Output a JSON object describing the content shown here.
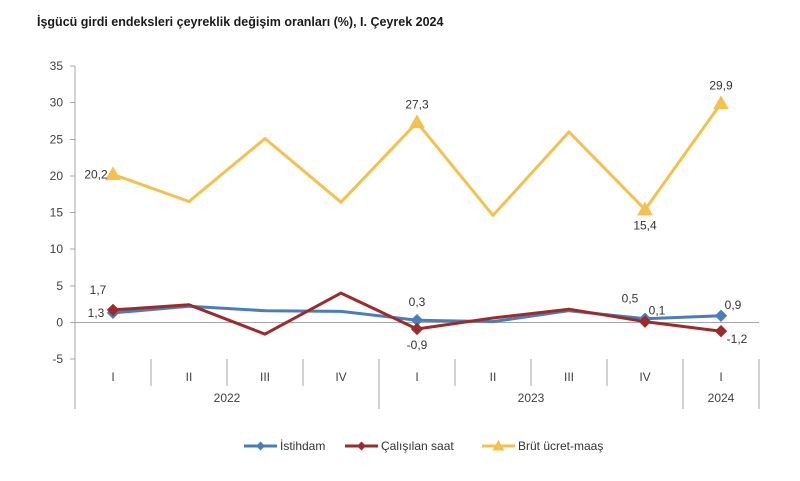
{
  "chart_data": {
    "type": "line",
    "title": "İşgücü girdi endeksleri çeyreklik değişim oranları (%), I. Çeyrek 2024",
    "categories": [
      "I",
      "II",
      "III",
      "IV",
      "I",
      "II",
      "III",
      "IV",
      "I"
    ],
    "category_groups": [
      {
        "label": "2022",
        "count": 4
      },
      {
        "label": "2023",
        "count": 4
      },
      {
        "label": "2024",
        "count": 1
      }
    ],
    "ylim": [
      -5,
      35
    ],
    "yticks": [
      -5,
      0,
      5,
      10,
      15,
      20,
      25,
      30,
      35
    ],
    "grid": false,
    "legend": "bottom",
    "series": [
      {
        "name": "İstihdam",
        "color": "#4a7ebb",
        "marker": "diamond",
        "values": [
          1.3,
          2.2,
          1.6,
          1.5,
          0.3,
          0.1,
          1.6,
          0.5,
          0.9
        ],
        "labels": [
          "1,3",
          null,
          null,
          null,
          "0,3",
          null,
          null,
          "0,5",
          "0,9"
        ],
        "label_positions": [
          "left",
          null,
          null,
          null,
          "above",
          null,
          null,
          "above-left",
          "above-right"
        ]
      },
      {
        "name": "Çalışılan saat",
        "color": "#9e2a2b",
        "marker": "diamond",
        "values": [
          1.7,
          2.4,
          -1.6,
          4.0,
          -0.9,
          0.6,
          1.8,
          0.1,
          -1.2
        ],
        "labels": [
          "1,7",
          null,
          null,
          null,
          "-0,9",
          null,
          null,
          "0,1",
          "-1,2"
        ],
        "label_positions": [
          "above-left",
          null,
          null,
          null,
          "below",
          null,
          null,
          "above-right",
          "below-right"
        ]
      },
      {
        "name": "Brüt ücret-maaş",
        "color": "#f2c14e",
        "marker": "triangle",
        "values": [
          20.2,
          16.5,
          25.1,
          16.4,
          27.3,
          14.6,
          26.0,
          15.4,
          29.9
        ],
        "labels": [
          "20,2",
          null,
          null,
          null,
          "27,3",
          null,
          null,
          "15,4",
          "29,9"
        ],
        "label_positions": [
          "left",
          null,
          null,
          null,
          "above",
          null,
          null,
          "below",
          "above"
        ]
      }
    ]
  }
}
